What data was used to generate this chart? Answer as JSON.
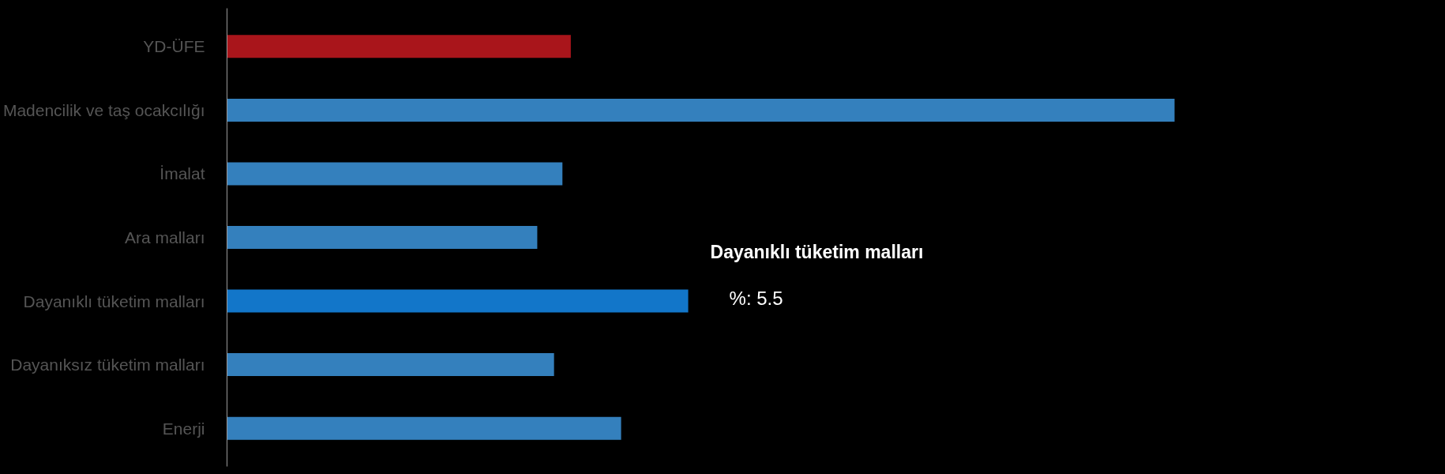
{
  "chart_data": {
    "type": "bar",
    "orientation": "horizontal",
    "categories": [
      "YD-ÜFE",
      "Madencilik ve taş ocakcılığı",
      "İmalat",
      "Ara malları",
      "Dayanıklı tüketim malları",
      "Dayanıksız tüketim malları",
      "Enerji"
    ],
    "values": [
      4.1,
      11.3,
      4.0,
      3.7,
      5.5,
      3.9,
      4.7
    ],
    "colors": [
      "#a9151b",
      "#3480bd",
      "#3480bd",
      "#3480bd",
      "#1276c9",
      "#3480bd",
      "#3480bd"
    ],
    "value_labels": [
      null,
      null,
      null,
      null,
      "%: 5.5",
      null,
      null
    ],
    "annotations": [
      {
        "text": "Dayanıklı tüketim malları",
        "x": 5.5,
        "y": "Dayanıklı tüketim malları"
      }
    ],
    "tick_labels": "y"
  }
}
